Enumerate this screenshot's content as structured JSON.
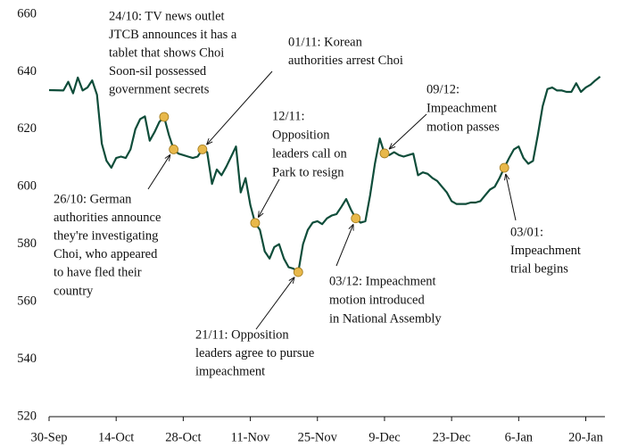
{
  "chart_data": {
    "type": "line",
    "color": "#0f4d3a",
    "marker_color": "#e8b84a",
    "xlim": [
      "30-Sep",
      "24-Jan"
    ],
    "xticks": [
      "30-Sep",
      "14-Oct",
      "28-Oct",
      "11-Nov",
      "25-Nov",
      "9-Dec",
      "23-Dec",
      "6-Jan",
      "20-Jan"
    ],
    "ylim": [
      520,
      660
    ],
    "yticks": [
      520,
      540,
      560,
      580,
      600,
      620,
      640,
      660
    ],
    "x": [
      "30-Sep",
      "3-Oct",
      "4-Oct",
      "5-Oct",
      "6-Oct",
      "7-Oct",
      "8-Oct",
      "9-Oct",
      "10-Oct",
      "11-Oct",
      "12-Oct",
      "13-Oct",
      "14-Oct",
      "15-Oct",
      "16-Oct",
      "17-Oct",
      "18-Oct",
      "19-Oct",
      "20-Oct",
      "21-Oct",
      "22-Oct",
      "23-Oct",
      "24-Oct",
      "25-Oct",
      "26-Oct",
      "27-Oct",
      "28-Oct",
      "29-Oct",
      "30-Oct",
      "31-Oct",
      "1-Nov",
      "2-Nov",
      "3-Nov",
      "4-Nov",
      "5-Nov",
      "6-Nov",
      "7-Nov",
      "8-Nov",
      "9-Nov",
      "10-Nov",
      "11-Nov",
      "12-Nov",
      "13-Nov",
      "14-Nov",
      "15-Nov",
      "16-Nov",
      "17-Nov",
      "18-Nov",
      "19-Nov",
      "20-Nov",
      "21-Nov",
      "22-Nov",
      "23-Nov",
      "24-Nov",
      "25-Nov",
      "26-Nov",
      "27-Nov",
      "28-Nov",
      "29-Nov",
      "30-Nov",
      "1-Dec",
      "2-Dec",
      "3-Dec",
      "4-Dec",
      "5-Dec",
      "6-Dec",
      "7-Dec",
      "8-Dec",
      "9-Dec",
      "10-Dec",
      "11-Dec",
      "12-Dec",
      "13-Dec",
      "14-Dec",
      "15-Dec",
      "16-Dec",
      "17-Dec",
      "18-Dec",
      "19-Dec",
      "20-Dec",
      "21-Dec",
      "22-Dec",
      "23-Dec",
      "24-Dec",
      "25-Dec",
      "26-Dec",
      "27-Dec",
      "28-Dec",
      "29-Dec",
      "30-Dec",
      "31-Dec",
      "1-Jan",
      "2-Jan",
      "3-Jan",
      "4-Jan",
      "5-Jan",
      "6-Jan",
      "7-Jan",
      "8-Jan",
      "9-Jan",
      "10-Jan",
      "11-Jan",
      "12-Jan",
      "13-Jan",
      "14-Jan",
      "15-Jan",
      "16-Jan",
      "17-Jan",
      "18-Jan",
      "19-Jan",
      "20-Jan",
      "21-Jan",
      "22-Jan",
      "23-Jan"
    ],
    "values": [
      633.6,
      633.5,
      636.5,
      632.5,
      638,
      633.5,
      634.5,
      637,
      632,
      615,
      609,
      606.6,
      610,
      610.5,
      610,
      613,
      620,
      623.5,
      624.5,
      616,
      619,
      622.5,
      624.3,
      618,
      613,
      611.5,
      611,
      610.5,
      610,
      610.5,
      613,
      612,
      601,
      606,
      604,
      607,
      610.5,
      614,
      598,
      603,
      593.6,
      587.4,
      585,
      577.5,
      575,
      579,
      580,
      575,
      572,
      571.5,
      570.3,
      580,
      585,
      587.5,
      588,
      587,
      589,
      590,
      590.5,
      593,
      595.7,
      592,
      589,
      587.5,
      588,
      597,
      608,
      616.8,
      611.6,
      611,
      612,
      611,
      610.5,
      611,
      611.5,
      604,
      605,
      604.5,
      603,
      602,
      600,
      598,
      595,
      594,
      594,
      594,
      594.5,
      594.5,
      595,
      597,
      599,
      600,
      603,
      606.6,
      610,
      613,
      614,
      610,
      608,
      609,
      618,
      628,
      634,
      634.5,
      633.5,
      633.5,
      633,
      633,
      636,
      633,
      634.5,
      635.5,
      637,
      638.3
    ],
    "annotations": [
      {
        "x": "24-Oct",
        "y": 624.3,
        "lines": [
          "24/10: TV news outlet",
          "JTCB announces it has a",
          "tablet that shows Choi",
          "Soon-sil possessed",
          "government secrets"
        ]
      },
      {
        "x": "26-Oct",
        "y": 613,
        "lines": [
          "26/10: German",
          "authorities announce",
          "they're investigating",
          "Choi, who appeared",
          "to have fled their",
          "country"
        ]
      },
      {
        "x": "1-Nov",
        "y": 613,
        "lines": [
          "01/11: Korean",
          "authorities arrest Choi"
        ]
      },
      {
        "x": "12-Nov",
        "y": 587.4,
        "lines": [
          "12/11:",
          "Opposition",
          "leaders call on",
          "Park to resign"
        ]
      },
      {
        "x": "21-Nov",
        "y": 570.3,
        "lines": [
          "21/11: Opposition",
          "leaders agree to pursue",
          "impeachment"
        ]
      },
      {
        "x": "3-Dec",
        "y": 589,
        "lines": [
          "03/12: Impeachment",
          "motion introduced",
          "in National  Assembly"
        ]
      },
      {
        "x": "9-Dec",
        "y": 611.6,
        "lines": [
          "09/12:",
          "Impeachment",
          "motion passes"
        ]
      },
      {
        "x": "3-Jan",
        "y": 606.6,
        "lines": [
          "03/01:",
          "Impeachment",
          "trial begins"
        ]
      }
    ]
  }
}
